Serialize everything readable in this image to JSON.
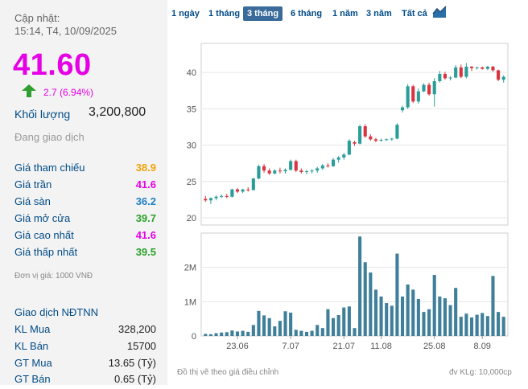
{
  "summary": {
    "updated_label": "Cập nhật:",
    "updated_time": "15:14, T4, 10/09/2025",
    "price": "41.60",
    "change": "2.7 (6.94%)",
    "volume_label": "Khối lượng",
    "volume_value": "3,200,800",
    "status": "Đang giao dịch",
    "price_color": "#e600e6"
  },
  "stats": [
    {
      "label": "Giá tham chiếu",
      "value": "38.9",
      "color": "#f0a30a"
    },
    {
      "label": "Giá trần",
      "value": "41.6",
      "color": "#e600e6"
    },
    {
      "label": "Giá sàn",
      "value": "36.2",
      "color": "#1e7fc4"
    },
    {
      "label": "Giá mở cửa",
      "value": "39.7",
      "color": "#2aa12a"
    },
    {
      "label": "Giá cao nhất",
      "value": "41.6",
      "color": "#e600e6"
    },
    {
      "label": "Giá thấp nhất",
      "value": "39.5",
      "color": "#2aa12a"
    }
  ],
  "unit_note": "Đơn vị giá: 1000 VNĐ",
  "foreign": {
    "title": "Giao dịch NĐTNN",
    "rows": [
      {
        "label": "KL Mua",
        "value": "328,200"
      },
      {
        "label": "KL Bán",
        "value": "15700"
      },
      {
        "label": "GT Mua",
        "value": "13.65 (Tỷ)"
      },
      {
        "label": "GT Bán",
        "value": "0.65 (Tỷ)"
      }
    ]
  },
  "tabs": [
    {
      "label": "1 ngày",
      "active": false
    },
    {
      "label": "1 tháng",
      "active": false
    },
    {
      "label": "3 tháng",
      "active": true
    },
    {
      "label": "6 tháng",
      "active": false
    },
    {
      "label": "1 năm",
      "active": false
    },
    {
      "label": "3 năm",
      "active": false
    },
    {
      "label": "Tất cả",
      "active": false
    }
  ],
  "chart_icon": "line-chart-icon",
  "footer": {
    "left": "Đồ thị vẽ theo giá điều chỉnh",
    "right": "đv KLg: 10,000cp"
  },
  "chart_data": {
    "type": "candlestick",
    "price_ticks": [
      "40",
      "35",
      "30",
      "25",
      "20"
    ],
    "price_range": [
      19,
      44
    ],
    "volume_ticks": [
      "2M",
      "1M",
      "0"
    ],
    "volume_range": [
      0,
      3000000
    ],
    "x_tick_labels": [
      "23.06",
      "7.07",
      "21.07",
      "11.08",
      "25.08",
      "8.09"
    ],
    "x_tick_index": [
      6,
      16,
      26,
      33,
      43,
      52
    ],
    "up_color": "#2a9d9a",
    "down_color": "#d9343f",
    "volume_color": "#3f7f99",
    "candles": [
      {
        "o": 22.6,
        "h": 23.0,
        "l": 22.2,
        "c": 22.4,
        "v": 60000
      },
      {
        "o": 22.4,
        "h": 22.8,
        "l": 21.9,
        "c": 22.7,
        "v": 50000
      },
      {
        "o": 22.7,
        "h": 23.1,
        "l": 22.4,
        "c": 22.9,
        "v": 80000
      },
      {
        "o": 22.9,
        "h": 23.2,
        "l": 22.7,
        "c": 23.0,
        "v": 100000
      },
      {
        "o": 23.0,
        "h": 23.3,
        "l": 22.7,
        "c": 22.9,
        "v": 110000
      },
      {
        "o": 22.9,
        "h": 24.0,
        "l": 22.8,
        "c": 23.9,
        "v": 160000
      },
      {
        "o": 23.9,
        "h": 24.1,
        "l": 23.4,
        "c": 23.6,
        "v": 130000
      },
      {
        "o": 23.6,
        "h": 24.0,
        "l": 23.4,
        "c": 23.9,
        "v": 150000
      },
      {
        "o": 23.9,
        "h": 24.2,
        "l": 23.6,
        "c": 23.8,
        "v": 120000
      },
      {
        "o": 23.8,
        "h": 25.5,
        "l": 23.8,
        "c": 25.4,
        "v": 320000
      },
      {
        "o": 25.4,
        "h": 27.3,
        "l": 25.3,
        "c": 27.1,
        "v": 730000
      },
      {
        "o": 27.1,
        "h": 27.4,
        "l": 26.2,
        "c": 26.5,
        "v": 600000
      },
      {
        "o": 26.5,
        "h": 26.8,
        "l": 25.9,
        "c": 26.1,
        "v": 520000
      },
      {
        "o": 26.1,
        "h": 26.7,
        "l": 26.0,
        "c": 26.5,
        "v": 280000
      },
      {
        "o": 26.5,
        "h": 26.9,
        "l": 26.1,
        "c": 26.4,
        "v": 440000
      },
      {
        "o": 26.4,
        "h": 26.8,
        "l": 26.1,
        "c": 26.6,
        "v": 720000
      },
      {
        "o": 26.6,
        "h": 28.0,
        "l": 26.5,
        "c": 27.8,
        "v": 680000
      },
      {
        "o": 27.8,
        "h": 28.0,
        "l": 26.3,
        "c": 26.5,
        "v": 180000
      },
      {
        "o": 26.5,
        "h": 26.8,
        "l": 26.1,
        "c": 26.3,
        "v": 150000
      },
      {
        "o": 26.3,
        "h": 26.6,
        "l": 26.0,
        "c": 26.4,
        "v": 120000
      },
      {
        "o": 26.4,
        "h": 26.7,
        "l": 26.1,
        "c": 26.5,
        "v": 150000
      },
      {
        "o": 26.5,
        "h": 27.0,
        "l": 26.2,
        "c": 26.8,
        "v": 320000
      },
      {
        "o": 26.8,
        "h": 27.4,
        "l": 26.6,
        "c": 27.2,
        "v": 230000
      },
      {
        "o": 27.2,
        "h": 27.5,
        "l": 26.9,
        "c": 27.1,
        "v": 780000
      },
      {
        "o": 27.1,
        "h": 28.2,
        "l": 27.0,
        "c": 28.0,
        "v": 520000
      },
      {
        "o": 28.0,
        "h": 28.5,
        "l": 27.6,
        "c": 28.3,
        "v": 610000
      },
      {
        "o": 28.3,
        "h": 28.9,
        "l": 28.0,
        "c": 28.7,
        "v": 830000
      },
      {
        "o": 28.7,
        "h": 30.8,
        "l": 28.6,
        "c": 30.6,
        "v": 860000
      },
      {
        "o": 30.4,
        "h": 30.6,
        "l": 29.9,
        "c": 30.2,
        "v": 230000
      },
      {
        "o": 30.2,
        "h": 32.8,
        "l": 30.1,
        "c": 32.6,
        "v": 2900000
      },
      {
        "o": 32.6,
        "h": 32.9,
        "l": 31.0,
        "c": 31.2,
        "v": 2150000
      },
      {
        "o": 31.2,
        "h": 31.5,
        "l": 30.6,
        "c": 30.8,
        "v": 1850000
      },
      {
        "o": 30.8,
        "h": 31.0,
        "l": 30.4,
        "c": 30.6,
        "v": 1350000
      },
      {
        "o": 30.6,
        "h": 30.9,
        "l": 30.5,
        "c": 30.7,
        "v": 1150000
      },
      {
        "o": 30.7,
        "h": 30.9,
        "l": 30.6,
        "c": 30.8,
        "v": 960000
      },
      {
        "o": 30.8,
        "h": 31.0,
        "l": 30.6,
        "c": 30.9,
        "v": 880000
      },
      {
        "o": 30.9,
        "h": 33.0,
        "l": 30.8,
        "c": 32.8,
        "v": 2400000
      },
      {
        "o": 34.8,
        "h": 35.4,
        "l": 34.5,
        "c": 35.2,
        "v": 1150000
      },
      {
        "o": 35.2,
        "h": 38.4,
        "l": 35.0,
        "c": 38.1,
        "v": 1500000
      },
      {
        "o": 38.1,
        "h": 38.3,
        "l": 35.8,
        "c": 36.0,
        "v": 1350000
      },
      {
        "o": 36.0,
        "h": 37.8,
        "l": 35.7,
        "c": 37.4,
        "v": 1080000
      },
      {
        "o": 37.4,
        "h": 38.5,
        "l": 37.3,
        "c": 38.3,
        "v": 700000
      },
      {
        "o": 38.3,
        "h": 38.6,
        "l": 36.8,
        "c": 37.0,
        "v": 780000
      },
      {
        "o": 37.0,
        "h": 39.2,
        "l": 35.3,
        "c": 38.8,
        "v": 1780000
      },
      {
        "o": 38.8,
        "h": 40.2,
        "l": 38.6,
        "c": 39.8,
        "v": 1150000
      },
      {
        "o": 39.8,
        "h": 40.1,
        "l": 39.0,
        "c": 39.2,
        "v": 1100000
      },
      {
        "o": 39.2,
        "h": 39.5,
        "l": 38.9,
        "c": 39.3,
        "v": 900000
      },
      {
        "o": 39.3,
        "h": 41.0,
        "l": 39.2,
        "c": 40.7,
        "v": 1400000
      },
      {
        "o": 40.7,
        "h": 41.1,
        "l": 39.2,
        "c": 39.4,
        "v": 560000
      },
      {
        "o": 39.4,
        "h": 41.3,
        "l": 39.2,
        "c": 40.8,
        "v": 650000
      },
      {
        "o": 40.8,
        "h": 40.9,
        "l": 40.2,
        "c": 40.6,
        "v": 540000
      },
      {
        "o": 40.6,
        "h": 40.8,
        "l": 40.4,
        "c": 40.7,
        "v": 620000
      },
      {
        "o": 40.7,
        "h": 40.8,
        "l": 40.4,
        "c": 40.5,
        "v": 670000
      },
      {
        "o": 40.5,
        "h": 40.9,
        "l": 40.3,
        "c": 40.8,
        "v": 580000
      },
      {
        "o": 40.8,
        "h": 40.9,
        "l": 40.1,
        "c": 40.3,
        "v": 1750000
      },
      {
        "o": 40.3,
        "h": 40.4,
        "l": 38.8,
        "c": 39.0,
        "v": 700000
      },
      {
        "o": 39.0,
        "h": 39.6,
        "l": 38.6,
        "c": 39.4,
        "v": 560000
      }
    ]
  }
}
